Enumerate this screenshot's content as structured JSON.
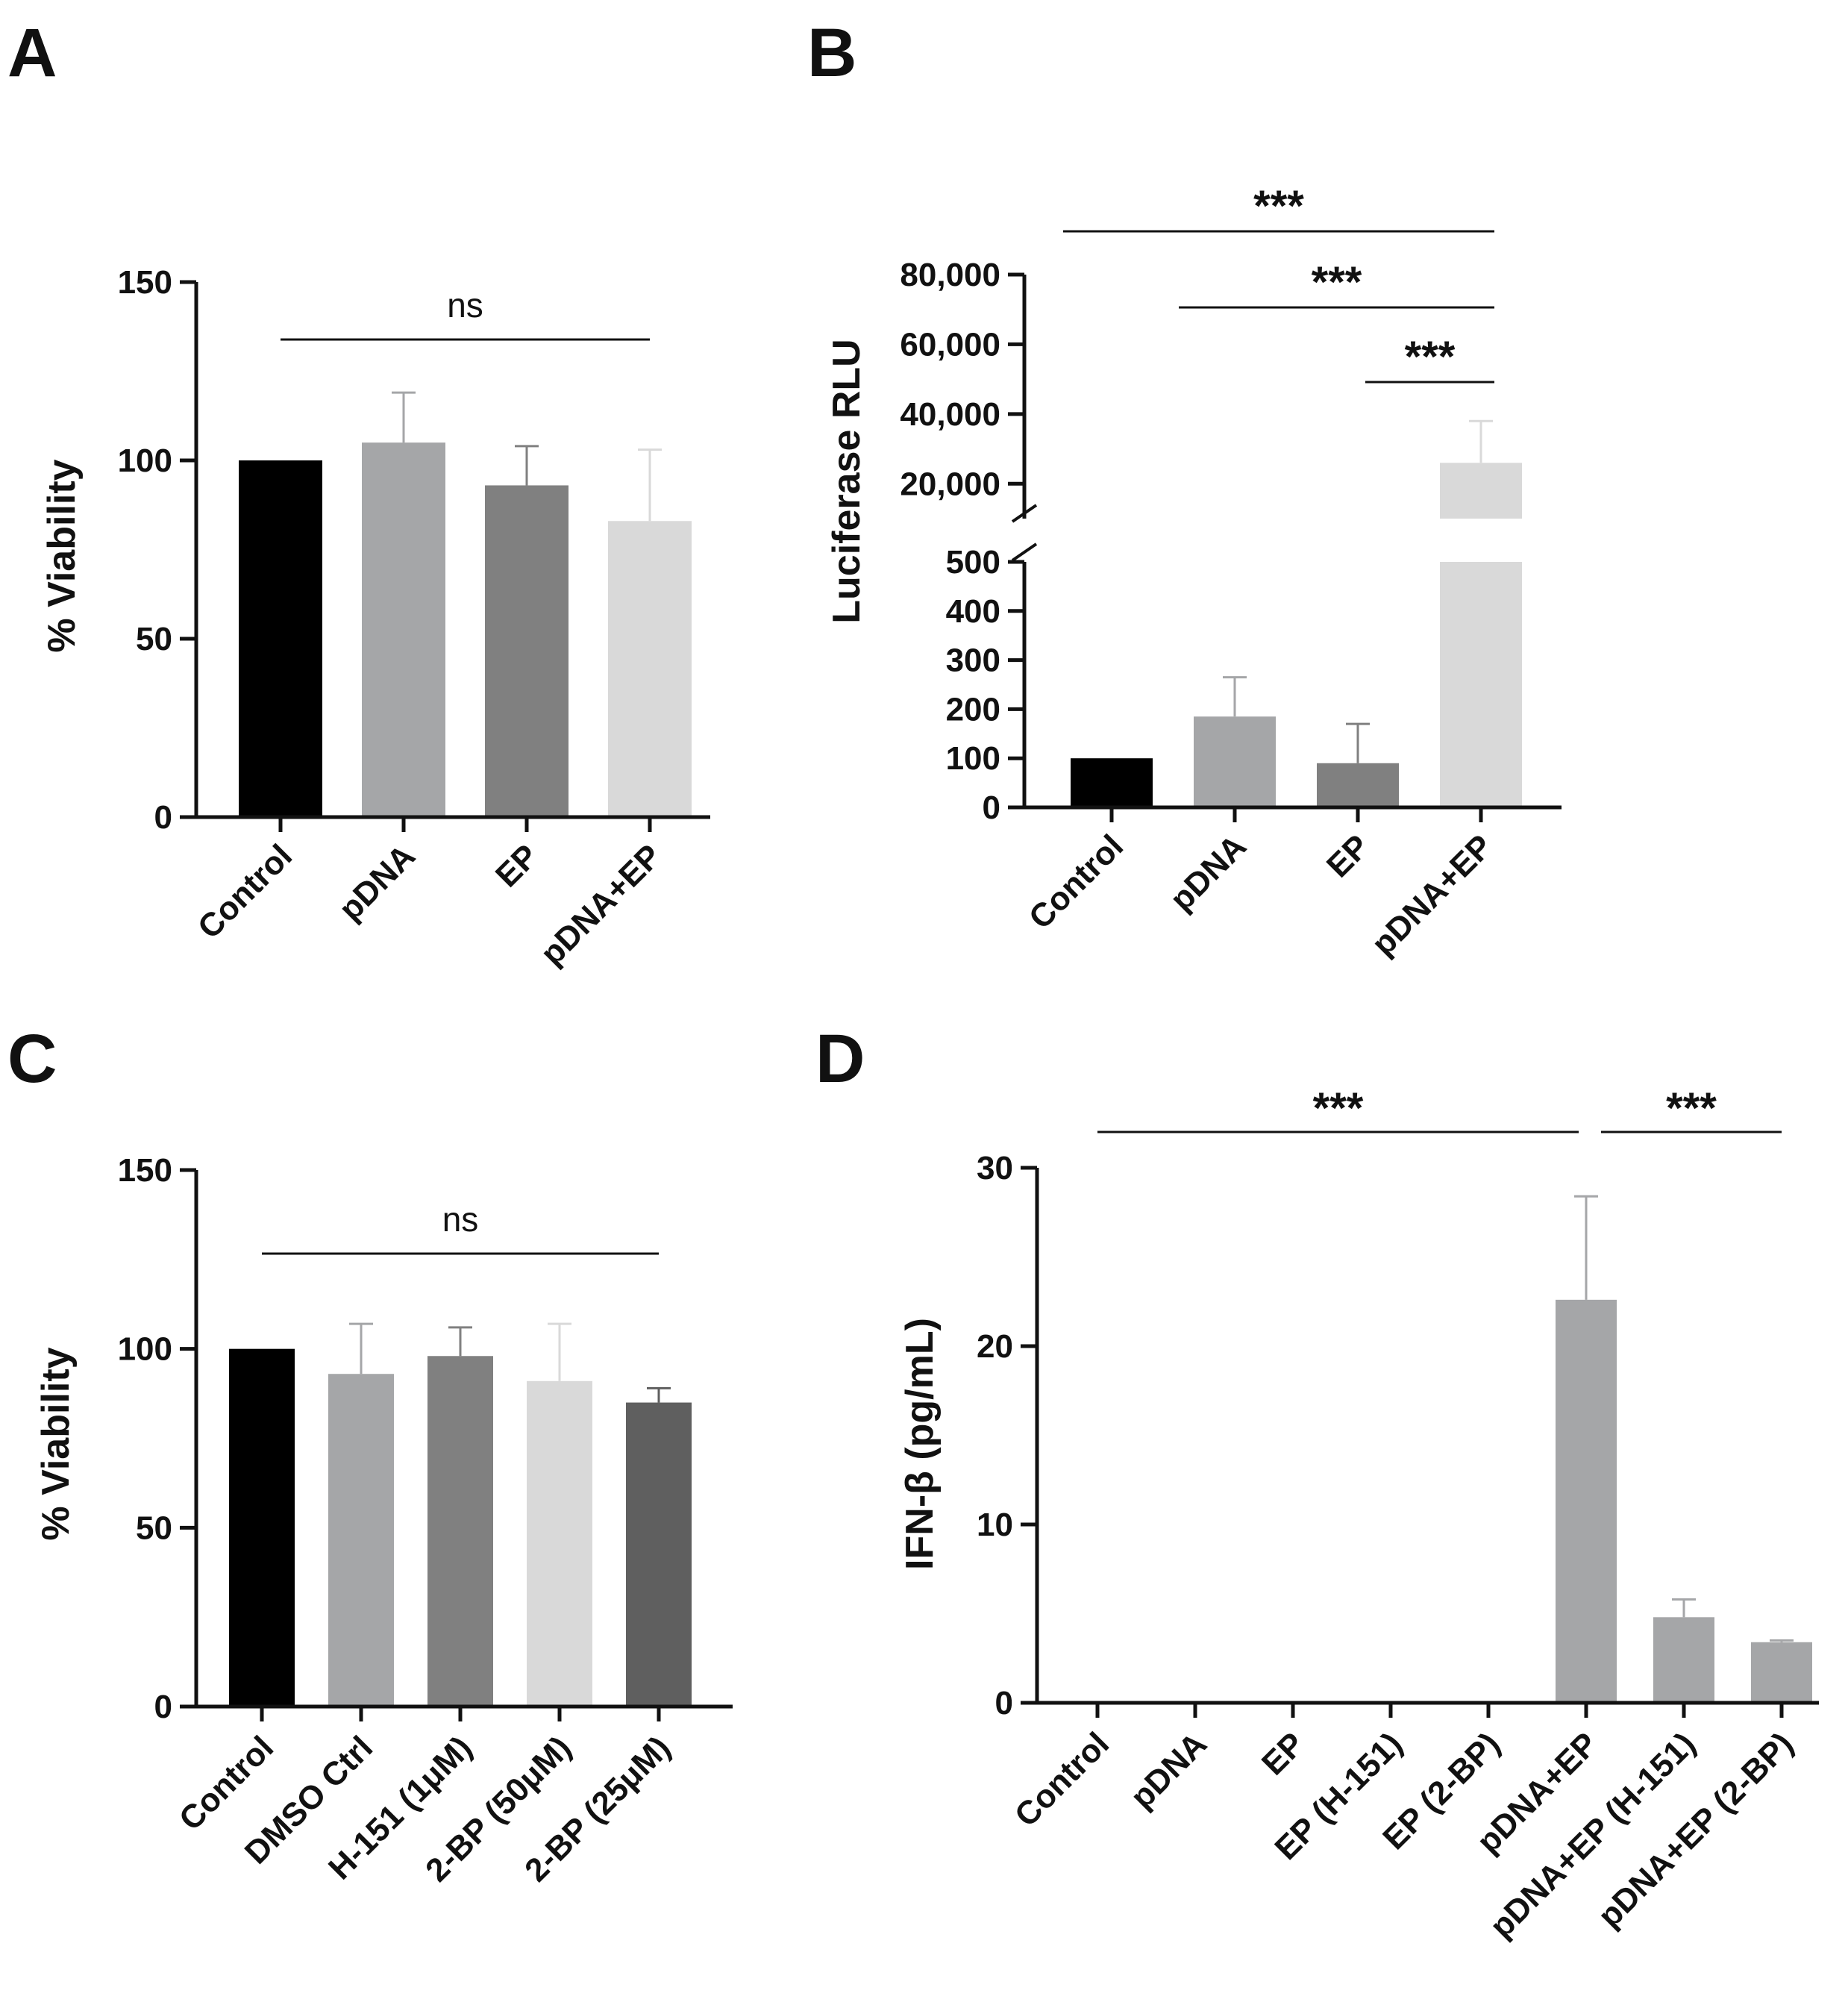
{
  "chart_data": [
    {
      "panel": "A",
      "type": "bar",
      "categories": [
        "Control",
        "pDNA",
        "EP",
        "pDNA+EP"
      ],
      "values": [
        100,
        105,
        93,
        83
      ],
      "errors": [
        0,
        14,
        11,
        20
      ],
      "colors": [
        "#000000",
        "#a5a6a8",
        "#808080",
        "#d9d9d9"
      ],
      "ylabel": "% Viability",
      "ylim": [
        0,
        150
      ],
      "yticks": [
        "0",
        "50",
        "100",
        "150"
      ],
      "yticks_values": [
        0,
        50,
        100,
        150
      ],
      "significance": [
        {
          "label": "ns",
          "from": 0,
          "to": 3
        }
      ]
    },
    {
      "panel": "B",
      "type": "bar",
      "categories": [
        "Control",
        "pDNA",
        "EP",
        "pDNA+EP"
      ],
      "values": [
        100,
        185,
        90,
        26000
      ],
      "errors": [
        0,
        80,
        80,
        12000
      ],
      "colors": [
        "#000000",
        "#a5a6a8",
        "#808080",
        "#d9d9d9"
      ],
      "ylabel": "Luciferase RLU",
      "axis_break": {
        "lower_max": 500,
        "upper_min": 10000
      },
      "ylim_lower": [
        0,
        500
      ],
      "ylim_upper": [
        10000,
        80000
      ],
      "yticks_lower": [
        "0",
        "100",
        "200",
        "300",
        "400",
        "500"
      ],
      "yticks_lower_values": [
        0,
        100,
        200,
        300,
        400,
        500
      ],
      "yticks_upper": [
        "20,000",
        "40,000",
        "60,000",
        "80,000"
      ],
      "yticks_upper_values": [
        20000,
        40000,
        60000,
        80000
      ],
      "significance": [
        {
          "label": "***",
          "from": 0,
          "to": 3
        },
        {
          "label": "***",
          "from": 1,
          "to": 3
        },
        {
          "label": "***",
          "from": 2,
          "to": 3
        }
      ]
    },
    {
      "panel": "C",
      "type": "bar",
      "categories": [
        "Control",
        "DMSO Ctrl",
        "H-151 (1μM)",
        "2-BP (50μM)",
        "2-BP (25μM)"
      ],
      "values": [
        100,
        93,
        98,
        91,
        85
      ],
      "errors": [
        0,
        14,
        8,
        16,
        4
      ],
      "colors": [
        "#000000",
        "#a5a6a8",
        "#808080",
        "#d9d9d9",
        "#5f5f5f"
      ],
      "ylabel": "% Viability",
      "ylim": [
        0,
        150
      ],
      "yticks": [
        "0",
        "50",
        "100",
        "150"
      ],
      "yticks_values": [
        0,
        50,
        100,
        150
      ],
      "significance": [
        {
          "label": "ns",
          "from": 0,
          "to": 4
        }
      ]
    },
    {
      "panel": "D",
      "type": "bar",
      "categories": [
        "Control",
        "pDNA",
        "EP",
        "EP (H-151)",
        "EP (2-BP)",
        "pDNA+EP",
        "pDNA+EP (H-151)",
        "pDNA+EP (2-BP)"
      ],
      "values": [
        0,
        0,
        0,
        0,
        0,
        22.6,
        4.8,
        3.4
      ],
      "errors": [
        0,
        0,
        0,
        0,
        0,
        5.8,
        1.0,
        0.1
      ],
      "colors": [
        "#a5a6a8",
        "#a5a6a8",
        "#a5a6a8",
        "#a5a6a8",
        "#a5a6a8",
        "#a5a6a8",
        "#a5a6a8",
        "#a5a6a8"
      ],
      "ylabel": "IFN-β (pg/mL)",
      "ylim": [
        0,
        30
      ],
      "yticks": [
        "0",
        "10",
        "20",
        "30"
      ],
      "yticks_values": [
        0,
        10,
        20,
        30
      ],
      "significance": [
        {
          "label": "***",
          "from": 0,
          "to": 5
        },
        {
          "label": "***",
          "from": 5,
          "to": 7
        }
      ]
    }
  ]
}
